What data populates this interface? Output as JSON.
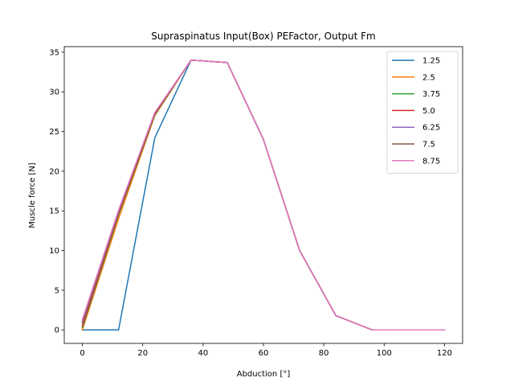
{
  "chart_data": {
    "type": "line",
    "title": "Supraspinatus Input(Box) PEFactor, Output Fm",
    "xlabel": "Abduction [°]",
    "ylabel": "Muscle force [N]",
    "xlim": [
      -6,
      126
    ],
    "ylim": [
      -1.7,
      35.7
    ],
    "xticks": [
      0,
      20,
      40,
      60,
      80,
      100,
      120
    ],
    "yticks": [
      0,
      5,
      10,
      15,
      20,
      25,
      30,
      35
    ],
    "grid": false,
    "legend_position": "top-right",
    "x": [
      0,
      12,
      24,
      36,
      48,
      60,
      72,
      84,
      96,
      108,
      120
    ],
    "series": [
      {
        "name": "1.25",
        "color": "#1f77b4",
        "values": [
          0.0,
          0.0,
          24.2,
          34.0,
          33.7,
          24.0,
          10.0,
          1.8,
          0.0,
          0.0,
          0.0
        ]
      },
      {
        "name": "2.5",
        "color": "#ff7f0e",
        "values": [
          0.0,
          14.0,
          27.0,
          34.0,
          33.7,
          24.0,
          10.0,
          1.8,
          0.0,
          0.0,
          0.0
        ]
      },
      {
        "name": "3.75",
        "color": "#2ca02c",
        "values": [
          0.3,
          14.5,
          27.1,
          34.0,
          33.7,
          24.0,
          10.0,
          1.8,
          0.0,
          0.0,
          0.0
        ]
      },
      {
        "name": "5.0",
        "color": "#d62728",
        "values": [
          0.5,
          14.7,
          27.2,
          34.0,
          33.7,
          24.0,
          10.0,
          1.8,
          0.0,
          0.0,
          0.0
        ]
      },
      {
        "name": "6.25",
        "color": "#9467bd",
        "values": [
          0.8,
          14.9,
          27.3,
          34.0,
          33.7,
          24.0,
          10.0,
          1.8,
          0.0,
          0.0,
          0.0
        ]
      },
      {
        "name": "7.5",
        "color": "#8c564b",
        "values": [
          1.0,
          15.0,
          27.3,
          34.0,
          33.7,
          24.0,
          10.0,
          1.8,
          0.0,
          0.0,
          0.0
        ]
      },
      {
        "name": "8.75",
        "color": "#e377c2",
        "values": [
          1.3,
          15.1,
          27.4,
          34.0,
          33.7,
          24.0,
          10.0,
          1.8,
          0.0,
          0.0,
          0.0
        ]
      }
    ]
  }
}
